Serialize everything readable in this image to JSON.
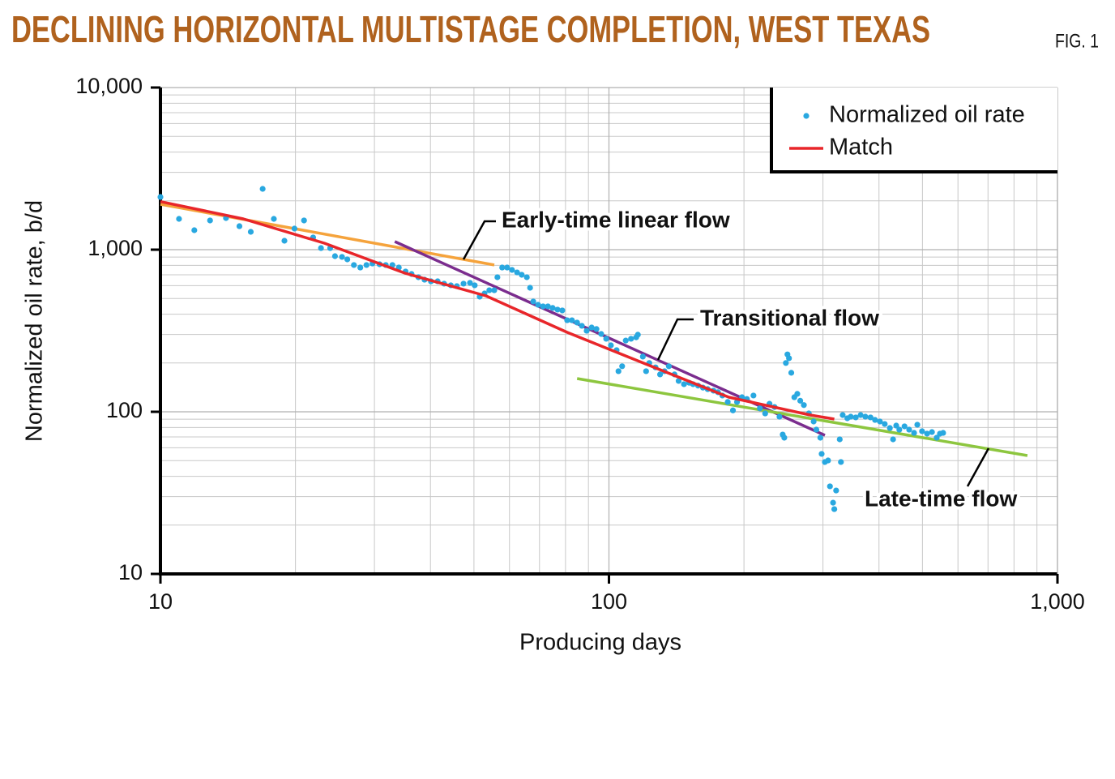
{
  "chart_data": {
    "type": "scatter",
    "title": "DECLINING HORIZONTAL MULTISTAGE COMPLETION, WEST TEXAS",
    "figure_label": "FIG. 1",
    "x_label": "Producing days",
    "y_label": "Normalized oil rate, b/d",
    "log_x": true,
    "log_y": true,
    "grid": true,
    "minor_grid": true,
    "legend_position": "upper right",
    "xlim": [
      10,
      1000
    ],
    "xticks": [
      10,
      100,
      {
        "value": 1000,
        "label": "1,000"
      }
    ],
    "ylim": [
      10,
      10000
    ],
    "yticks": [
      10,
      100,
      {
        "value": 1000,
        "label": "1,000"
      },
      {
        "value": 10000,
        "label": "10,000"
      }
    ],
    "series": [
      {
        "name": "Normalized oil rate",
        "color": "#29a8e0",
        "kind": "points",
        "x": [
          10,
          11,
          11.9,
          12.9,
          14,
          15,
          15.9,
          16.9,
          17.9,
          18.9,
          19.9,
          20.9,
          21.9,
          22.8,
          23.9,
          24.5,
          25.4,
          26.1,
          27,
          27.9,
          28.8,
          29.7,
          30.8,
          31.8,
          32.9,
          34,
          35.2,
          36.3,
          37.6,
          38.8,
          40.1,
          41.5,
          42.9,
          44.4,
          45.8,
          47.4,
          49,
          50.2,
          51.5,
          52.8,
          54.1,
          55.5,
          56.4,
          57.8,
          59.3,
          60.8,
          62.4,
          63.9,
          65.6,
          66.7,
          67.8,
          69.5,
          71.3,
          73.1,
          74.9,
          76.8,
          78.7,
          80.7,
          82.7,
          84.9,
          87,
          89.2,
          91.5,
          93.8,
          96.1,
          98.6,
          101,
          104,
          105,
          107,
          109,
          112,
          115,
          116,
          119,
          121,
          123,
          127,
          130,
          133,
          136,
          140,
          143,
          147,
          151,
          154,
          158,
          162,
          166,
          171,
          175,
          179,
          184,
          189,
          193,
          198,
          203,
          210,
          217,
          223,
          228,
          234,
          240,
          244,
          246,
          248,
          250,
          252,
          255,
          259,
          263,
          267,
          272,
          279,
          286,
          290,
          296,
          298,
          303,
          308,
          311,
          316,
          318,
          321,
          327,
          329,
          332,
          340,
          346,
          355,
          364,
          373,
          383,
          392,
          402,
          412,
          423,
          430,
          437,
          444,
          456,
          467,
          479,
          487,
          499,
          512,
          525,
          538,
          547,
          556
        ],
        "values": [
          2113,
          1549,
          1318,
          1514,
          1567,
          1396,
          1288,
          2371,
          1549,
          1135,
          1349,
          1514,
          1189,
          1023,
          1023,
          912,
          902,
          871,
          804,
          776,
          804,
          822,
          813,
          804,
          804,
          776,
          733,
          708,
          676,
          653,
          638,
          638,
          617,
          603,
          596,
          617,
          624,
          603,
          513,
          537,
          562,
          562,
          676,
          776,
          776,
          750,
          724,
          700,
          676,
          582,
          479,
          457,
          447,
          447,
          437,
          427,
          422,
          367,
          367,
          355,
          339,
          316,
          331,
          324,
          302,
          282,
          257,
          240,
          178,
          191,
          275,
          282,
          288,
          299,
          219,
          178,
          200,
          188,
          170,
          178,
          191,
          170,
          155,
          148,
          151,
          148,
          145,
          141,
          138,
          135,
          132,
          126,
          115,
          102,
          115,
          123,
          120,
          126,
          105,
          97.7,
          112,
          107,
          93.3,
          72.4,
          69.2,
          200,
          226,
          214,
          174,
          123,
          129,
          117,
          110,
          97.7,
          87.1,
          77.6,
          69.2,
          55,
          49,
          50.1,
          34.7,
          27.5,
          25.1,
          32.7,
          67.6,
          49,
          95.5,
          91.2,
          93.3,
          92.3,
          95.5,
          93.3,
          92.3,
          89.1,
          87.1,
          84.1,
          79.4,
          67.6,
          82.2,
          77.6,
          81.3,
          77.6,
          74.1,
          83.2,
          75.9,
          73.3,
          75,
          69.2,
          73.3,
          74.1
        ]
      },
      {
        "name": "Match",
        "color": "#e8262a",
        "kind": "line",
        "x": [
          10,
          15.3,
          23.2,
          35.1,
          53.2,
          80.7,
          122,
          185,
          281,
          318
        ],
        "values": [
          1980,
          1549,
          1096,
          716,
          519,
          309,
          195,
          123,
          95.5,
          90.2
        ]
      }
    ],
    "annotations": [
      {
        "text": "Early-time linear flow",
        "color": "#f5a33c",
        "x": [
          10,
          55.5
        ],
        "values": [
          1905,
          804
        ]
      },
      {
        "text": "Transitional flow",
        "color": "#7b2d8e",
        "x": [
          33.3,
          303
        ],
        "values": [
          1122,
          71.6
        ]
      },
      {
        "text": "Late-time flow",
        "color": "#8dc63f",
        "x": [
          84.9,
          857
        ],
        "values": [
          160.3,
          53.7
        ]
      }
    ]
  }
}
